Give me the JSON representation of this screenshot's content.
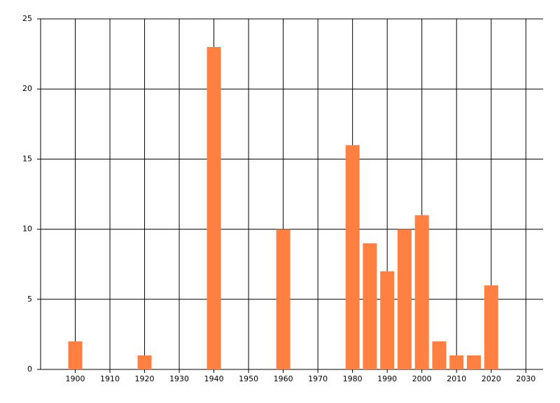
{
  "chart_data": {
    "type": "bar",
    "x": [
      1900,
      1920,
      1940,
      1960,
      1980,
      1985,
      1990,
      1995,
      2000,
      2005,
      2010,
      2015,
      2020
    ],
    "values": [
      2,
      1,
      23,
      10,
      16,
      9,
      7,
      10,
      11,
      2,
      1,
      1,
      6
    ],
    "color": "#ff8040",
    "xlim": [
      1890,
      2035
    ],
    "xticks": [
      1900,
      1910,
      1920,
      1930,
      1940,
      1950,
      1960,
      1970,
      1980,
      1990,
      2000,
      2010,
      2020,
      2030
    ],
    "ylim": [
      0,
      25
    ],
    "yticks": [
      0,
      5,
      10,
      15,
      20,
      25
    ],
    "grid": true
  }
}
